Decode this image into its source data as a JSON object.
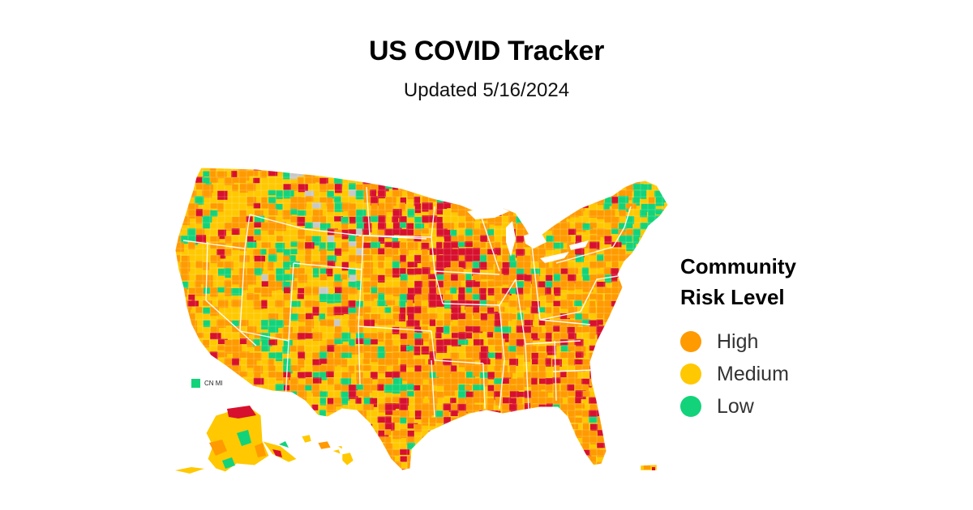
{
  "header": {
    "title": "US COVID Tracker",
    "subtitle": "Updated 5/16/2024"
  },
  "legend": {
    "title_line1": "Community",
    "title_line2": "Risk Level",
    "items": [
      {
        "label": "High",
        "color": "#ff9a00"
      },
      {
        "label": "Medium",
        "color": "#ffc800"
      },
      {
        "label": "Low",
        "color": "#12d37a"
      }
    ]
  },
  "map": {
    "colors": {
      "very_high": "#d7102e",
      "high": "#ff9a00",
      "medium": "#ffc800",
      "low": "#12d37a",
      "no_data": "#c8c8c8",
      "borders": "#ffffff"
    },
    "territory_label": "CN MI"
  }
}
